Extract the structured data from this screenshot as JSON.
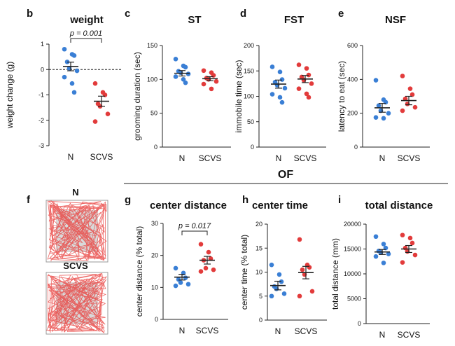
{
  "colors": {
    "n": "#3a7fd5",
    "scvs": "#e23b3b",
    "axis": "#222222",
    "track": "#e8413f",
    "arena_fill": "#d9d9d9"
  },
  "section_title": "OF",
  "arena": {
    "panel_label": "f",
    "labels": [
      "N",
      "SCVS"
    ]
  },
  "chart_data": [
    {
      "id": "b",
      "panel_label": "b",
      "type": "scatter",
      "title": "weight",
      "ylabel": "weight change (g)",
      "ylim": [
        -3,
        1
      ],
      "yticks": [
        1,
        0,
        -1,
        -2,
        -3
      ],
      "zero_line": true,
      "significance": "p = 0.001",
      "categories": [
        "N",
        "SCVS"
      ],
      "series": [
        {
          "name": "N",
          "values": [
            0.8,
            0.6,
            0.55,
            0.3,
            0.05,
            -0.05,
            -0.3,
            -0.55,
            -0.9
          ],
          "mean": 0.12,
          "sem": 0.17
        },
        {
          "name": "SCVS",
          "values": [
            -0.55,
            -0.9,
            -1.0,
            -1.35,
            -1.45,
            -1.75,
            -2.05
          ],
          "mean": -1.25,
          "sem": 0.2
        }
      ]
    },
    {
      "id": "c",
      "panel_label": "c",
      "type": "scatter",
      "title": "ST",
      "ylabel": "grooming duration (sec)",
      "ylim": [
        0,
        150
      ],
      "yticks": [
        0,
        50,
        100,
        150
      ],
      "categories": [
        "N",
        "SCVS"
      ],
      "series": [
        {
          "name": "N",
          "values": [
            130,
            120,
            118,
            112,
            110,
            108,
            104,
            100,
            95
          ],
          "mean": 109,
          "sem": 4
        },
        {
          "name": "SCVS",
          "values": [
            113,
            110,
            106,
            102,
            100,
            97,
            93,
            86
          ],
          "mean": 101,
          "sem": 3
        }
      ]
    },
    {
      "id": "d",
      "panel_label": "d",
      "type": "scatter",
      "title": "FST",
      "ylabel": "immobile time (sec)",
      "ylim": [
        0,
        200
      ],
      "yticks": [
        0,
        50,
        100,
        150,
        200
      ],
      "categories": [
        "N",
        "SCVS"
      ],
      "series": [
        {
          "name": "N",
          "values": [
            158,
            148,
            133,
            128,
            122,
            116,
            104,
            98,
            88
          ],
          "mean": 124,
          "sem": 8
        },
        {
          "name": "SCVS",
          "values": [
            162,
            155,
            142,
            138,
            132,
            125,
            115,
            105,
            98
          ],
          "mean": 134,
          "sem": 7
        }
      ]
    },
    {
      "id": "e",
      "panel_label": "e",
      "type": "scatter",
      "title": "NSF",
      "ylabel": "latency to eat (sec)",
      "ylim": [
        0,
        600
      ],
      "yticks": [
        0,
        200,
        400,
        600
      ],
      "categories": [
        "N",
        "SCVS"
      ],
      "series": [
        {
          "name": "N",
          "values": [
            395,
            280,
            265,
            245,
            215,
            200,
            175,
            170
          ],
          "mean": 232,
          "sem": 26
        },
        {
          "name": "SCVS",
          "values": [
            420,
            345,
            310,
            285,
            255,
            235,
            215
          ],
          "mean": 275,
          "sem": 25
        }
      ]
    },
    {
      "id": "g",
      "panel_label": "g",
      "type": "scatter",
      "title": "center distance",
      "ylabel": "center distance (% total)",
      "ylim": [
        0,
        30
      ],
      "yticks": [
        0,
        10,
        20,
        30
      ],
      "significance": "p = 0.017",
      "categories": [
        "N",
        "SCVS"
      ],
      "series": [
        {
          "name": "N",
          "values": [
            16,
            14.5,
            13,
            12.5,
            11.5,
            11,
            10.5
          ],
          "mean": 13.2,
          "sem": 0.9
        },
        {
          "name": "SCVS",
          "values": [
            23.5,
            21,
            19,
            18.5,
            16,
            15.5,
            15
          ],
          "mean": 18.5,
          "sem": 1.2
        }
      ]
    },
    {
      "id": "h",
      "panel_label": "h",
      "type": "scatter",
      "title": "center time",
      "ylabel": "center time (% total)",
      "ylim": [
        0,
        20
      ],
      "yticks": [
        0,
        5,
        10,
        15,
        20
      ],
      "categories": [
        "N",
        "SCVS"
      ],
      "series": [
        {
          "name": "N",
          "values": [
            11.5,
            9.5,
            8,
            7,
            6.5,
            5.5,
            5
          ],
          "mean": 7.2,
          "sem": 0.9
        },
        {
          "name": "SCVS",
          "values": [
            16.8,
            11.5,
            11,
            10.5,
            9.5,
            6,
            5
          ],
          "mean": 9.9,
          "sem": 1.3
        }
      ]
    },
    {
      "id": "i",
      "panel_label": "i",
      "type": "scatter",
      "title": "total distance",
      "ylabel": "total distance (mm)",
      "ylim": [
        0,
        20000
      ],
      "yticks": [
        0,
        5000,
        10000,
        15000,
        20000
      ],
      "categories": [
        "N",
        "SCVS"
      ],
      "series": [
        {
          "name": "N",
          "values": [
            17500,
            16000,
            15200,
            14600,
            14300,
            14000,
            13500,
            12200
          ],
          "mean": 14400,
          "sem": 500
        },
        {
          "name": "SCVS",
          "values": [
            17800,
            17200,
            16200,
            15200,
            14500,
            13800,
            12300
          ],
          "mean": 15000,
          "sem": 700
        }
      ]
    }
  ]
}
